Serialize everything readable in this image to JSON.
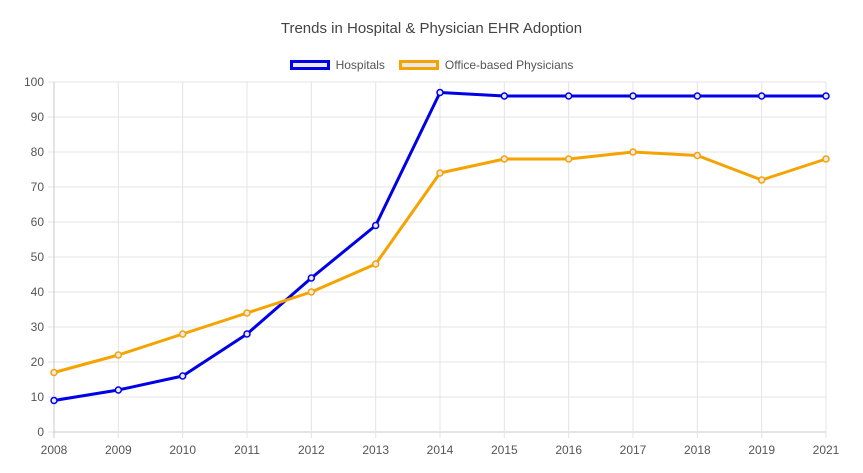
{
  "chart_data": {
    "type": "line",
    "title": "Trends in Hospital & Physician EHR Adoption",
    "categories": [
      "2008",
      "2009",
      "2010",
      "2011",
      "2012",
      "2013",
      "2014",
      "2015",
      "2016",
      "2017",
      "2018",
      "2019",
      "2021"
    ],
    "ylim": [
      0,
      100
    ],
    "yticks": [
      0,
      10,
      20,
      30,
      40,
      50,
      60,
      70,
      80,
      90,
      100
    ],
    "grid": true,
    "legend_position": "top-center",
    "series": [
      {
        "name": "Hospitals",
        "color": "#0000e6",
        "values": [
          9,
          12,
          16,
          28,
          44,
          59,
          97,
          96,
          96,
          96,
          96,
          96,
          96
        ]
      },
      {
        "name": "Office-based Physicians",
        "color": "#f5a300",
        "values": [
          17,
          22,
          28,
          34,
          40,
          48,
          74,
          78,
          78,
          80,
          79,
          72,
          78
        ]
      }
    ]
  }
}
